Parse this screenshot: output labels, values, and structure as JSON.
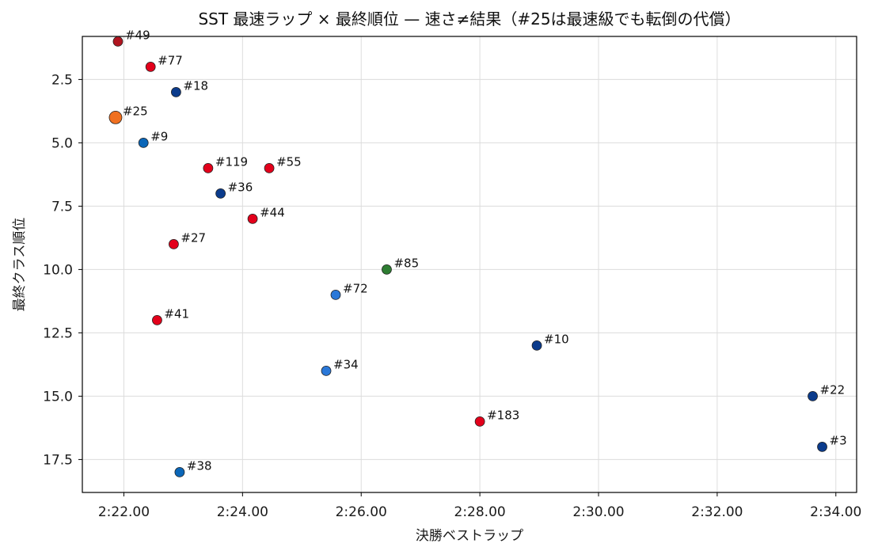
{
  "chart_data": {
    "type": "scatter",
    "title": "SST 最速ラップ × 最終順位 — 速さ≠結果（#25は最速級でも転倒の代償）",
    "xlabel": "決勝ベストラップ",
    "ylabel": "最終クラス順位",
    "x_unit": "seconds (lap time, shown as m:ss.ss)",
    "xlim": [
      "2:21.30",
      "2:34.35"
    ],
    "ylim": [
      18.8,
      0.8
    ],
    "y_inverted": true,
    "grid": true,
    "x_ticks": [
      "2:22.00",
      "2:24.00",
      "2:26.00",
      "2:28.00",
      "2:30.00",
      "2:32.00",
      "2:34.00"
    ],
    "y_ticks": [
      "2.5",
      "5.0",
      "7.5",
      "10.0",
      "12.5",
      "15.0",
      "17.5"
    ],
    "points": [
      {
        "label": "#49",
        "x": "2:21.90",
        "y": 1,
        "color": "#b0141f"
      },
      {
        "label": "#77",
        "x": "2:22.45",
        "y": 2,
        "color": "#e3001b"
      },
      {
        "label": "#18",
        "x": "2:22.88",
        "y": 3,
        "color": "#0b3b8c"
      },
      {
        "label": "#25",
        "x": "2:21.86",
        "y": 4,
        "color": "#f07020",
        "highlight": true
      },
      {
        "label": "#9",
        "x": "2:22.33",
        "y": 5,
        "color": "#0a66b8"
      },
      {
        "label": "#119",
        "x": "2:23.42",
        "y": 6,
        "color": "#e3001b"
      },
      {
        "label": "#55",
        "x": "2:24.45",
        "y": 6,
        "color": "#e3001b"
      },
      {
        "label": "#36",
        "x": "2:23.63",
        "y": 7,
        "color": "#0b3b8c"
      },
      {
        "label": "#44",
        "x": "2:24.17",
        "y": 8,
        "color": "#e3001b"
      },
      {
        "label": "#27",
        "x": "2:22.84",
        "y": 9,
        "color": "#e3001b"
      },
      {
        "label": "#85",
        "x": "2:26.43",
        "y": 10,
        "color": "#2e7d32"
      },
      {
        "label": "#72",
        "x": "2:25.57",
        "y": 11,
        "color": "#2a78d8"
      },
      {
        "label": "#41",
        "x": "2:22.56",
        "y": 12,
        "color": "#e3001b"
      },
      {
        "label": "#10",
        "x": "2:28.96",
        "y": 13,
        "color": "#0b3b8c"
      },
      {
        "label": "#34",
        "x": "2:25.41",
        "y": 14,
        "color": "#2a78d8"
      },
      {
        "label": "#22",
        "x": "2:33.61",
        "y": 15,
        "color": "#0b3b8c"
      },
      {
        "label": "#183",
        "x": "2:28.00",
        "y": 16,
        "color": "#e3001b"
      },
      {
        "label": "#3",
        "x": "2:33.77",
        "y": 17,
        "color": "#0b3b8c"
      },
      {
        "label": "#38",
        "x": "2:22.94",
        "y": 18,
        "color": "#0a66b8"
      }
    ]
  }
}
